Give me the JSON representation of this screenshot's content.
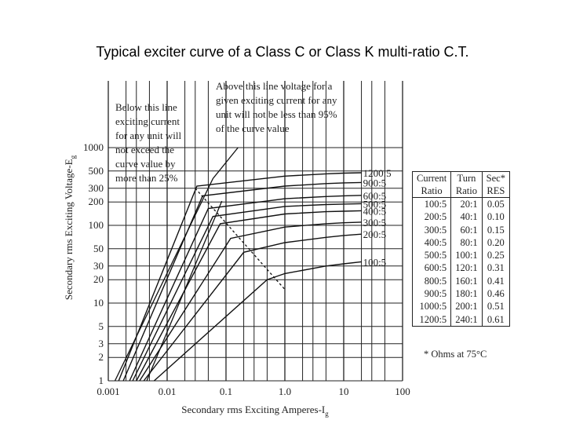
{
  "title": "Typical exciter curve of a Class C or Class K multi-ratio C.T.",
  "chart_data": {
    "type": "line",
    "x_scale": "log",
    "y_scale": "log",
    "xlabel": "Secondary rms Exciting Amperes-I",
    "xlabel_sub": "g",
    "ylabel": "Secondary rms Exciting Voltage-E",
    "ylabel_sub": "g",
    "xlim": [
      0.001,
      100
    ],
    "ylim": [
      1,
      1000
    ],
    "x_ticks": [
      {
        "v": 0.001,
        "label": "0.001"
      },
      {
        "v": 0.01,
        "label": "0.01"
      },
      {
        "v": 0.1,
        "label": "0.1"
      },
      {
        "v": 1,
        "label": "1.0"
      },
      {
        "v": 10,
        "label": "10"
      },
      {
        "v": 100,
        "label": "100"
      }
    ],
    "y_ticks": [
      {
        "v": 1,
        "label": "1"
      },
      {
        "v": 2,
        "label": "2"
      },
      {
        "v": 3,
        "label": "3"
      },
      {
        "v": 5,
        "label": "5"
      },
      {
        "v": 10,
        "label": "10"
      },
      {
        "v": 20,
        "label": "20"
      },
      {
        "v": 30,
        "label": "30"
      },
      {
        "v": 50,
        "label": "50"
      },
      {
        "v": 100,
        "label": "100"
      },
      {
        "v": 200,
        "label": "200"
      },
      {
        "v": 300,
        "label": "300"
      },
      {
        "v": 500,
        "label": "500"
      },
      {
        "v": 1000,
        "label": "1000"
      }
    ],
    "series": [
      {
        "name": "100:5",
        "points": [
          [
            0.006,
            1
          ],
          [
            0.5,
            20
          ],
          [
            1,
            24
          ],
          [
            5,
            30
          ],
          [
            10,
            32
          ],
          [
            20,
            34
          ]
        ]
      },
      {
        "name": "200:5",
        "points": [
          [
            0.004,
            1
          ],
          [
            0.2,
            45
          ],
          [
            1,
            60
          ],
          [
            5,
            70
          ],
          [
            10,
            74
          ],
          [
            20,
            77
          ]
        ]
      },
      {
        "name": "300:5",
        "points": [
          [
            0.0034,
            1
          ],
          [
            0.12,
            68
          ],
          [
            1,
            95
          ],
          [
            5,
            105
          ],
          [
            10,
            108
          ],
          [
            20,
            110
          ]
        ]
      },
      {
        "name": "400:5",
        "points": [
          [
            0.003,
            1
          ],
          [
            0.08,
            105
          ],
          [
            1,
            140
          ],
          [
            5,
            150
          ],
          [
            10,
            152
          ],
          [
            20,
            154
          ]
        ]
      },
      {
        "name": "500:5",
        "points": [
          [
            0.0026,
            1
          ],
          [
            0.06,
            130
          ],
          [
            1,
            175
          ],
          [
            5,
            185
          ],
          [
            10,
            188
          ],
          [
            20,
            190
          ]
        ]
      },
      {
        "name": "600:5",
        "points": [
          [
            0.0023,
            1
          ],
          [
            0.05,
            165
          ],
          [
            1,
            220
          ],
          [
            5,
            235
          ],
          [
            10,
            240
          ],
          [
            20,
            243
          ]
        ]
      },
      {
        "name": "900:5",
        "points": [
          [
            0.0018,
            1
          ],
          [
            0.04,
            240
          ],
          [
            1,
            320
          ],
          [
            5,
            345
          ],
          [
            10,
            352
          ],
          [
            20,
            356
          ]
        ]
      },
      {
        "name": "1200:5",
        "points": [
          [
            0.0015,
            1
          ],
          [
            0.032,
            320
          ],
          [
            1,
            430
          ],
          [
            5,
            460
          ],
          [
            10,
            470
          ],
          [
            20,
            475
          ]
        ]
      }
    ],
    "extra_lines": [
      {
        "name": "upper-limit-line",
        "points": [
          [
            0.0013,
            1
          ],
          [
            0.06,
            400
          ],
          [
            0.16,
            1000
          ]
        ]
      },
      {
        "name": "lower-limit-line",
        "points": [
          [
            0.0045,
            1
          ],
          [
            0.085,
            205
          ]
        ]
      },
      {
        "name": "knee-line",
        "points": [
          [
            0.03,
            300
          ],
          [
            1,
            15
          ]
        ]
      }
    ],
    "annotations": {
      "above": [
        "Above this line voltage for a",
        "given exciting current for any",
        "unit will not be less than 95%",
        "of the curve value"
      ],
      "below": [
        "Below this line",
        "exciting current",
        "for any unit will",
        "not exceed the",
        "curve value by",
        "more than 25%"
      ]
    },
    "grid": true
  },
  "table": {
    "headers": [
      [
        "Current",
        "Turn",
        "Sec*"
      ],
      [
        "Ratio",
        "Ratio",
        "RES"
      ]
    ],
    "rows": [
      [
        "100:5",
        "20:1",
        "0.05"
      ],
      [
        "200:5",
        "40:1",
        "0.10"
      ],
      [
        "300:5",
        "60:1",
        "0.15"
      ],
      [
        "400:5",
        "80:1",
        "0.20"
      ],
      [
        "500:5",
        "100:1",
        "0.25"
      ],
      [
        "600:5",
        "120:1",
        "0.31"
      ],
      [
        "800:5",
        "160:1",
        "0.41"
      ],
      [
        "900:5",
        "180:1",
        "0.46"
      ],
      [
        "1000:5",
        "200:1",
        "0.51"
      ],
      [
        "1200:5",
        "240:1",
        "0.61"
      ]
    ],
    "footnote": "* Ohms at 75°C"
  }
}
